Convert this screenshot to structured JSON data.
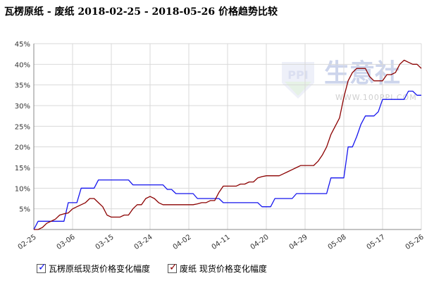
{
  "chart_data": {
    "type": "line",
    "title": "瓦楞原纸 - 废纸 2018-02-25 - 2018-05-26 价格趋势比较",
    "watermark": {
      "brand": "生意社",
      "url": "WWW.100PPI.COM"
    },
    "ylim": [
      0,
      45
    ],
    "yticks": [
      5,
      10,
      15,
      20,
      25,
      30,
      35,
      40,
      45
    ],
    "ytick_labels": [
      "5%",
      "10%",
      "15%",
      "20%",
      "25%",
      "30%",
      "35%",
      "40%",
      "45%"
    ],
    "x_range_days": [
      0,
      90
    ],
    "xticks": [
      {
        "day": 0,
        "label": "02-25"
      },
      {
        "day": 9,
        "label": "03-06"
      },
      {
        "day": 18,
        "label": "03-15"
      },
      {
        "day": 27,
        "label": "03-24"
      },
      {
        "day": 36,
        "label": "04-02"
      },
      {
        "day": 45,
        "label": "04-11"
      },
      {
        "day": 54,
        "label": "04-20"
      },
      {
        "day": 63,
        "label": "04-29"
      },
      {
        "day": 72,
        "label": "05-08"
      },
      {
        "day": 81,
        "label": "05-17"
      },
      {
        "day": 90,
        "label": "05-26"
      }
    ],
    "grid": true,
    "legend_position": "bottom-left",
    "series": [
      {
        "name": "瓦楞原纸现货价格变化幅度",
        "color": "#1515ee",
        "x": [
          0,
          1,
          2,
          3,
          4,
          5,
          6,
          7,
          8,
          9,
          10,
          11,
          12,
          13,
          14,
          15,
          16,
          17,
          18,
          19,
          20,
          21,
          22,
          23,
          24,
          25,
          26,
          27,
          28,
          29,
          30,
          31,
          32,
          33,
          34,
          35,
          36,
          37,
          38,
          39,
          40,
          41,
          42,
          43,
          44,
          45,
          46,
          47,
          48,
          49,
          50,
          51,
          52,
          53,
          54,
          55,
          56,
          57,
          58,
          59,
          60,
          61,
          62,
          63,
          64,
          65,
          66,
          67,
          68,
          69,
          70,
          71,
          72,
          73,
          74,
          75,
          76,
          77,
          78,
          79,
          80,
          81,
          82,
          83,
          84,
          85,
          86,
          87,
          88,
          89,
          90
        ],
        "values": [
          0,
          2,
          2,
          2,
          2,
          2,
          2,
          2,
          6.5,
          6.5,
          6.5,
          10,
          10,
          10,
          10,
          12,
          12,
          12,
          12,
          12,
          12,
          12,
          12,
          10.8,
          10.8,
          10.8,
          10.8,
          10.8,
          10.8,
          10.8,
          10.8,
          9.7,
          9.7,
          8.7,
          8.7,
          8.7,
          8.7,
          8.7,
          7.5,
          7.5,
          7.5,
          7.5,
          7.5,
          7.5,
          6.5,
          6.5,
          6.5,
          6.5,
          6.5,
          6.5,
          6.5,
          6.5,
          6.5,
          5.5,
          5.5,
          5.5,
          7.5,
          7.5,
          7.5,
          7.5,
          7.5,
          8.7,
          8.7,
          8.7,
          8.7,
          8.7,
          8.7,
          8.7,
          8.7,
          12.5,
          12.5,
          12.5,
          12.5,
          20,
          20,
          22.5,
          25.5,
          27.5,
          27.5,
          27.5,
          28.5,
          31.5,
          31.5,
          31.5,
          31.5,
          31.5,
          31.5,
          33.5,
          33.5,
          32.5,
          32.5
        ]
      },
      {
        "name": "废纸 现货价格变化幅度",
        "color": "#8b0000",
        "x": [
          0,
          1,
          2,
          3,
          4,
          5,
          6,
          7,
          8,
          9,
          10,
          11,
          12,
          13,
          14,
          15,
          16,
          17,
          18,
          19,
          20,
          21,
          22,
          23,
          24,
          25,
          26,
          27,
          28,
          29,
          30,
          31,
          32,
          33,
          34,
          35,
          36,
          37,
          38,
          39,
          40,
          41,
          42,
          43,
          44,
          45,
          46,
          47,
          48,
          49,
          50,
          51,
          52,
          53,
          54,
          55,
          56,
          57,
          58,
          59,
          60,
          61,
          62,
          63,
          64,
          65,
          66,
          67,
          68,
          69,
          70,
          71,
          72,
          73,
          74,
          75,
          76,
          77,
          78,
          79,
          80,
          81,
          82,
          83,
          84,
          85,
          86,
          87,
          88,
          89,
          90
        ],
        "values": [
          0,
          0,
          0.5,
          1.5,
          2,
          2.5,
          3.5,
          3.8,
          4,
          5,
          5.5,
          6,
          6.5,
          7.5,
          7.5,
          6.5,
          5.5,
          3.5,
          3,
          3,
          3,
          3.5,
          3.5,
          5,
          6,
          6,
          7.5,
          8,
          7.5,
          6.5,
          6,
          6,
          6,
          6,
          6,
          6,
          6,
          6,
          6.2,
          6.5,
          6.5,
          7,
          7,
          9,
          10.5,
          10.5,
          10.5,
          10.5,
          11,
          11,
          11.5,
          11.5,
          12.5,
          12.8,
          13,
          13,
          13,
          13,
          13.5,
          14,
          14.5,
          15,
          15.5,
          15.5,
          15.5,
          15.5,
          16.5,
          18,
          20,
          23,
          25,
          27,
          32,
          36,
          38,
          39,
          39,
          39,
          37,
          36,
          36,
          36,
          37.5,
          37.5,
          38,
          40,
          41,
          40.5,
          40,
          40,
          39
        ]
      }
    ]
  }
}
